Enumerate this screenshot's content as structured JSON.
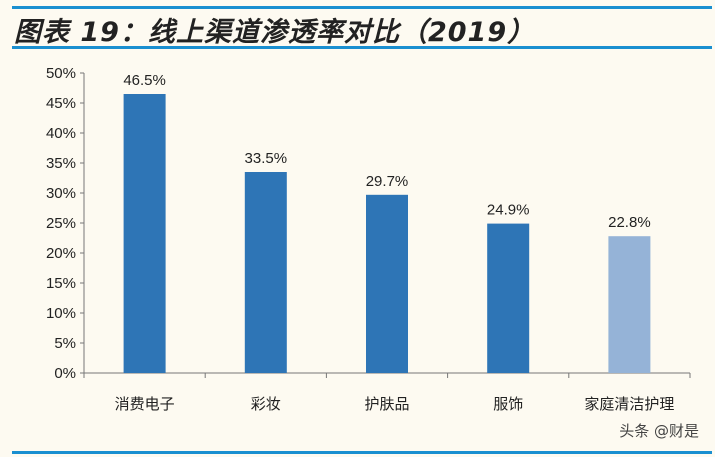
{
  "title": "图表 19：线上渠道渗透率对比（2019）",
  "watermark": "头条 @财是",
  "colors": {
    "rule": "#1a8fd0",
    "bar": "#2e75b6",
    "bar_highlight": "#95b3d7"
  },
  "chart_data": {
    "type": "bar",
    "title": "图表 19：线上渠道渗透率对比（2019）",
    "categories": [
      "消费电子",
      "彩妆",
      "护肤品",
      "服饰",
      "家庭清洁护理"
    ],
    "values": [
      46.5,
      33.5,
      29.7,
      24.9,
      22.8
    ],
    "data_labels": [
      "46.5%",
      "33.5%",
      "29.7%",
      "24.9%",
      "22.8%"
    ],
    "yticks": [
      "0%",
      "5%",
      "10%",
      "15%",
      "20%",
      "25%",
      "30%",
      "35%",
      "40%",
      "45%",
      "50%"
    ],
    "ylim": [
      0,
      50
    ],
    "unit": "%",
    "grid": false,
    "legend": "none"
  }
}
